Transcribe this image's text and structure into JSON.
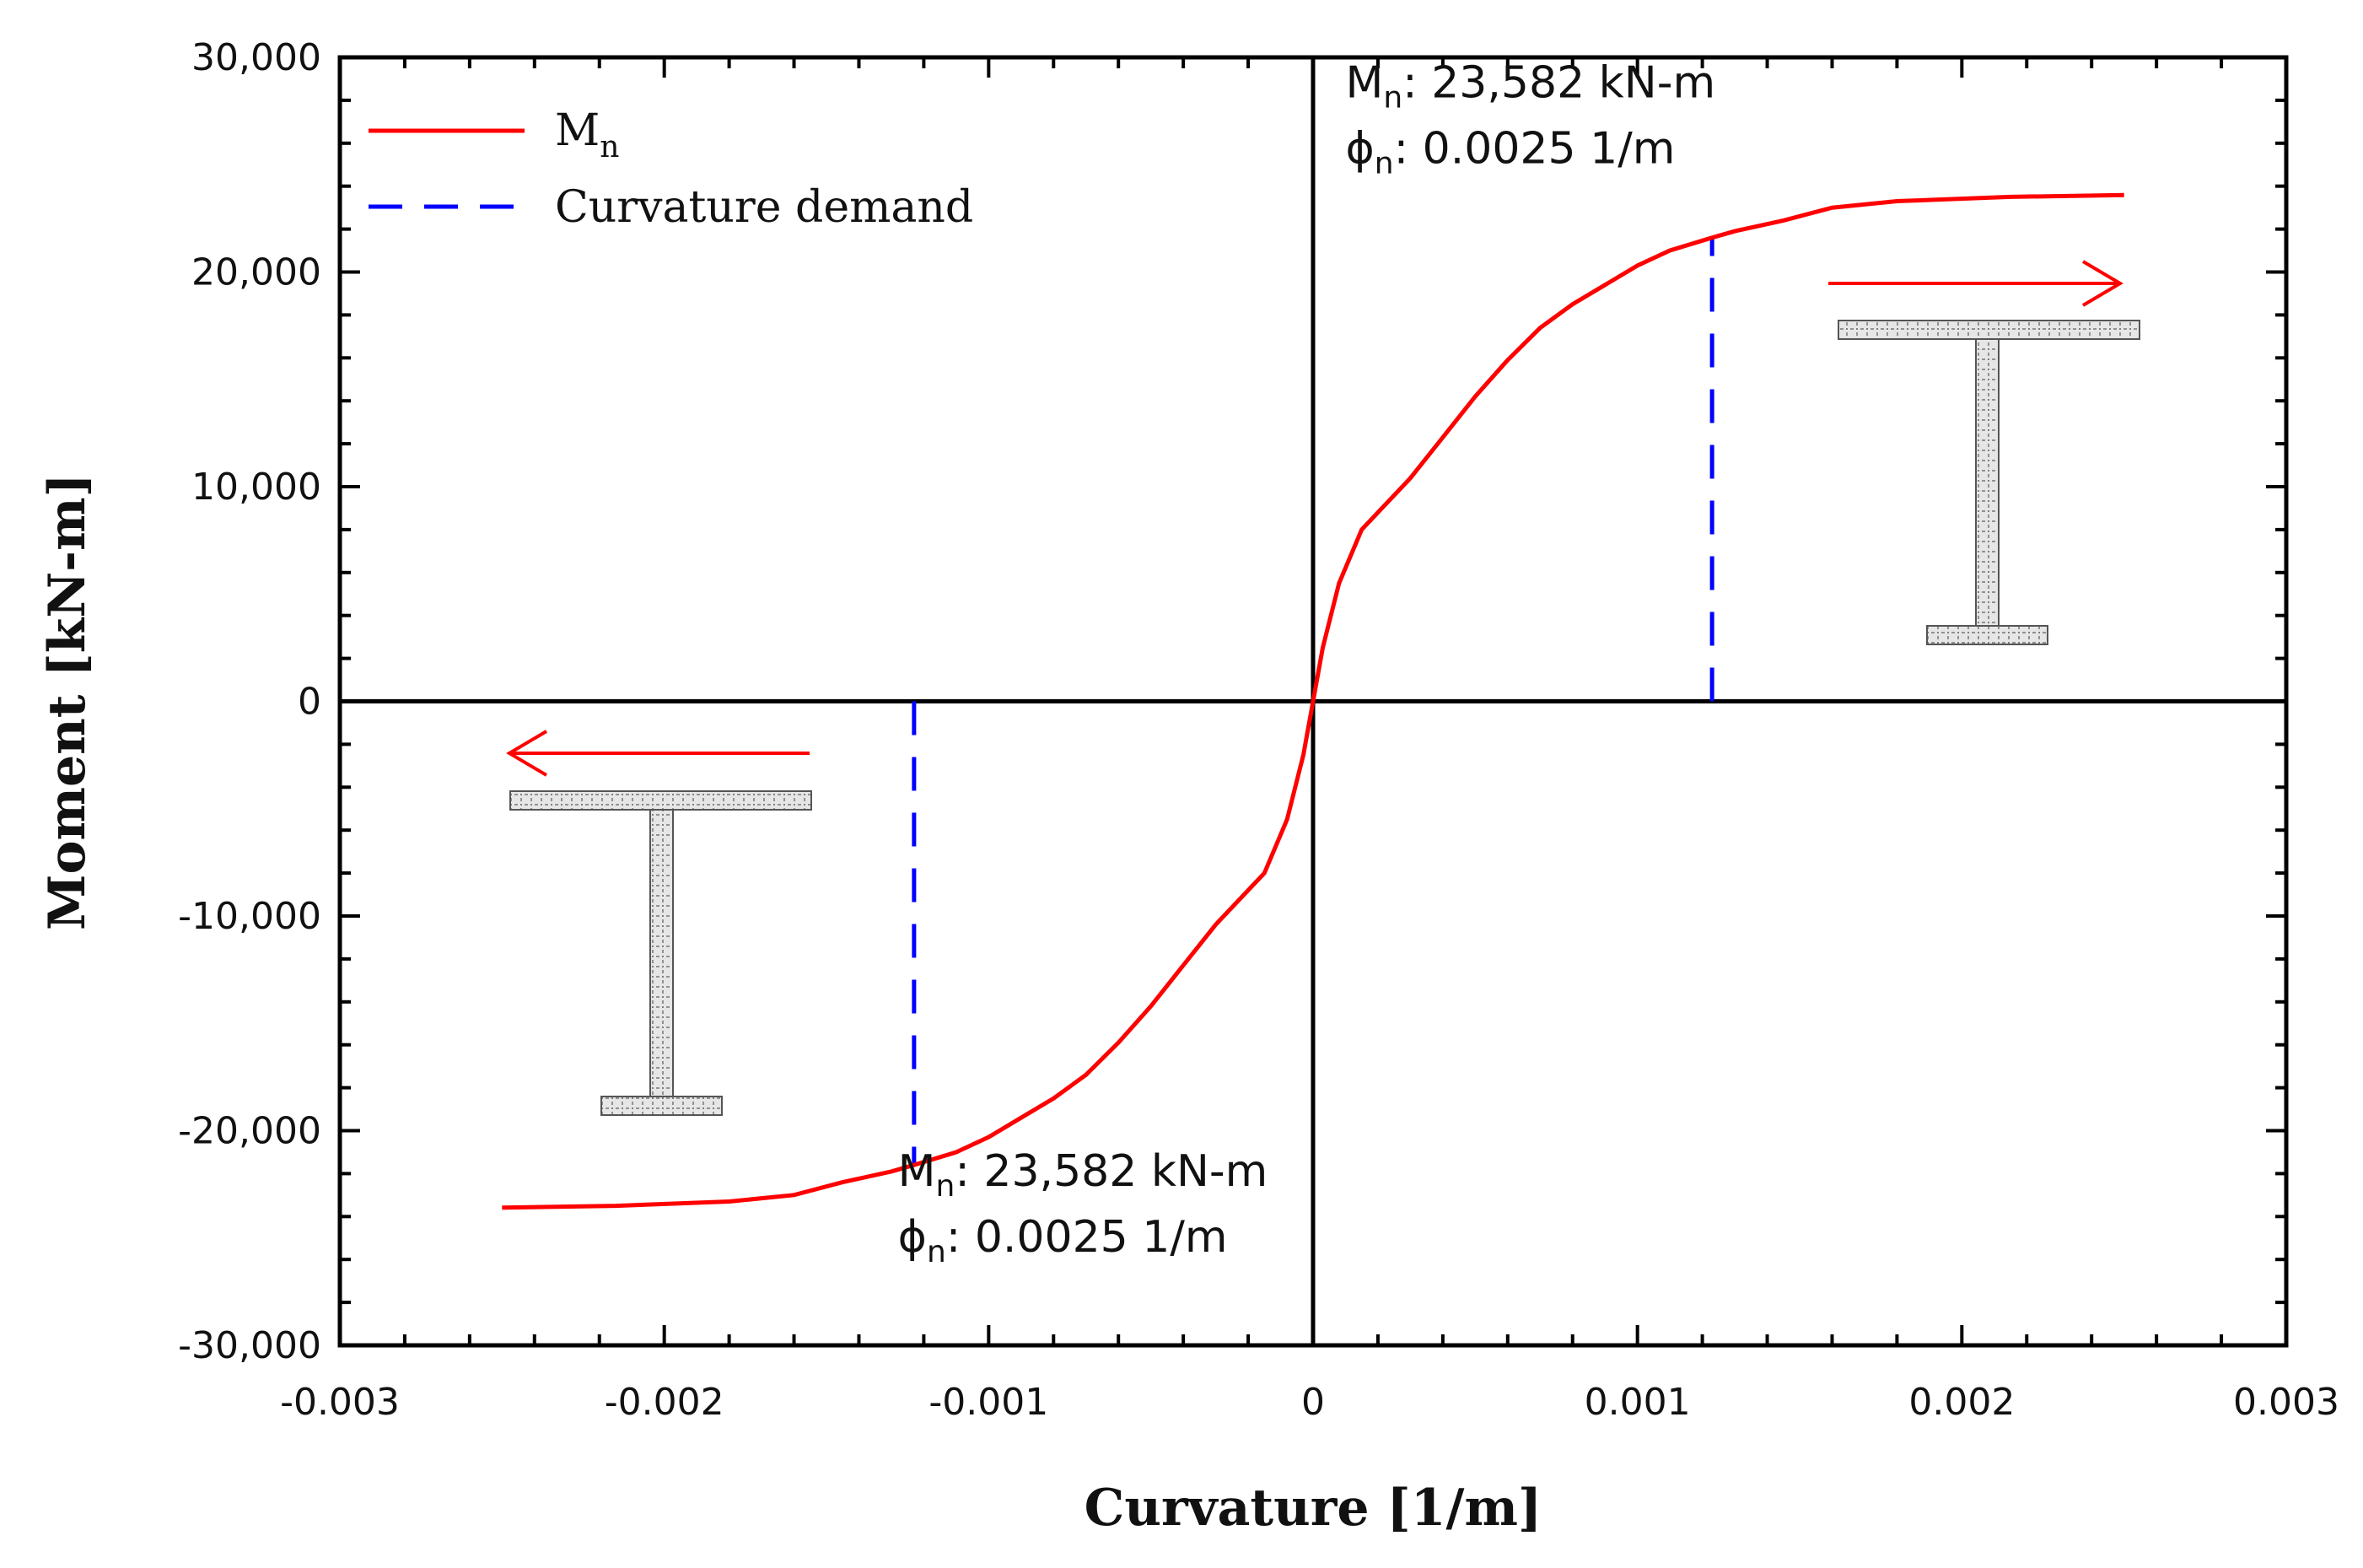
{
  "chart_data": {
    "type": "line",
    "title": "",
    "xlabel": "Curvature [1/m]",
    "ylabel": "Moment [kN-m]",
    "xlim": [
      -0.003,
      0.003
    ],
    "ylim": [
      -30000,
      30000
    ],
    "x_ticks": [
      -0.003,
      -0.002,
      -0.001,
      0,
      0.001,
      0.002,
      0.003
    ],
    "x_tick_labels": [
      "-0.003",
      "-0.002",
      "-0.001",
      "0",
      "0.001",
      "0.002",
      "0.003"
    ],
    "y_ticks": [
      -30000,
      -20000,
      -10000,
      0,
      10000,
      20000,
      30000
    ],
    "y_tick_labels": [
      "-30,000",
      "-20,000",
      "-10,000",
      "0",
      "10,000",
      "20,000",
      "30,000"
    ],
    "grid": false,
    "legend_position": "top-left",
    "legend": [
      {
        "label": "M",
        "subscript": "n",
        "style": "solid",
        "color": "#ff0000"
      },
      {
        "label": "Curvature demand",
        "subscript": "",
        "style": "dashed",
        "color": "#0000ff"
      }
    ],
    "series": [
      {
        "name": "Mn",
        "color": "#ff0000",
        "x": [
          -0.0025,
          -0.00215,
          -0.0018,
          -0.0016,
          -0.00145,
          -0.0013,
          -0.00123,
          -0.0011,
          -0.001,
          -0.0009,
          -0.0008,
          -0.0007,
          -0.0006,
          -0.0005,
          -0.0004,
          -0.0003,
          -0.00015,
          -8e-05,
          -3e-05,
          0,
          3e-05,
          8e-05,
          0.00015,
          0.0003,
          0.0004,
          0.0005,
          0.0006,
          0.0007,
          0.0008,
          0.0009,
          0.001,
          0.0011,
          0.00123,
          0.0013,
          0.00145,
          0.0016,
          0.0018,
          0.00215,
          0.0025
        ],
        "y": [
          -23582,
          -23500,
          -23300,
          -23000,
          -22400,
          -21900,
          -21600,
          -21000,
          -20300,
          -19400,
          -18500,
          -17400,
          -15900,
          -14200,
          -12300,
          -10400,
          -8000,
          -5500,
          -2500,
          0,
          2500,
          5500,
          8000,
          10400,
          12300,
          14200,
          15900,
          17400,
          18500,
          19400,
          20300,
          21000,
          21600,
          21900,
          22400,
          23000,
          23300,
          23500,
          23582
        ]
      }
    ],
    "curvature_demand": [
      {
        "x": 0.00123,
        "y_from": 0,
        "y_to": 21600,
        "color": "#0000ff"
      },
      {
        "x": -0.00123,
        "y_from": 0,
        "y_to": -21600,
        "color": "#0000ff"
      }
    ],
    "annotations": [
      {
        "id": "pos",
        "line1_main": "M",
        "line1_sub": "n",
        "line1_rest": ": 23,582 kN-m",
        "line2_main": "ϕ",
        "line2_sub": "n",
        "line2_rest": ": 0.0025 1/m",
        "x": 0.0001,
        "y": 26400
      },
      {
        "id": "neg",
        "line1_main": "M",
        "line1_sub": "n",
        "line1_rest": ": 23,582 kN-m",
        "line2_main": "ϕ",
        "line2_sub": "n",
        "line2_rest": ": 0.0025 1/m",
        "x": -0.00128,
        "y": -24300
      }
    ]
  },
  "colors": {
    "curve": "#ff0000",
    "demand": "#0000ff",
    "axis": "#000000",
    "section_fill": "#d9d9d9",
    "section_stroke": "#555555"
  },
  "icons": {
    "right_section": "i-beam-section-icon",
    "left_section": "i-beam-section-icon",
    "right_arrow": "arrow-right-icon",
    "left_arrow": "arrow-left-icon"
  }
}
